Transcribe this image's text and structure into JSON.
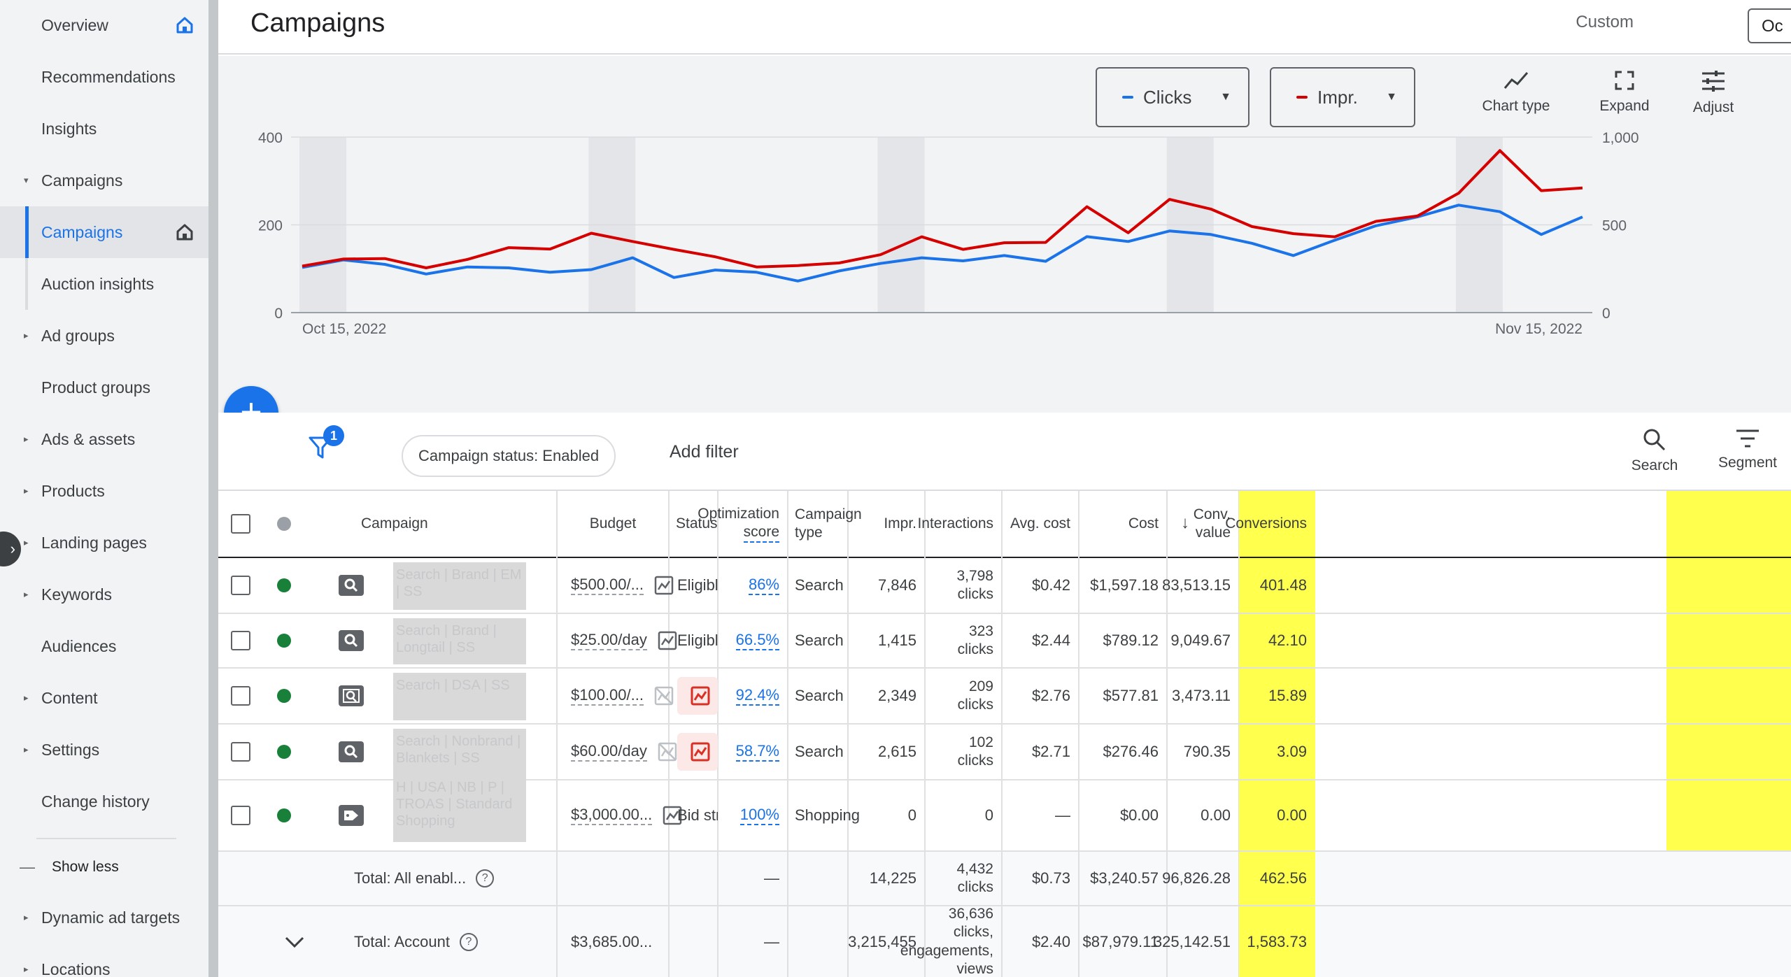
{
  "sidebar": {
    "items": [
      {
        "label": "Overview",
        "caret": false,
        "pin": "home"
      },
      {
        "label": "Recommendations",
        "caret": false
      },
      {
        "label": "Insights",
        "caret": false
      },
      {
        "label": "Campaigns",
        "caret": true,
        "expanded": true
      },
      {
        "label": "Campaigns",
        "caret": false,
        "active": true,
        "pin": "home-outline"
      },
      {
        "label": "Auction insights",
        "caret": false,
        "sub": true
      },
      {
        "label": "Ad groups",
        "caret": true
      },
      {
        "label": "Product groups",
        "caret": false
      },
      {
        "label": "Ads & assets",
        "caret": true
      },
      {
        "label": "Products",
        "caret": true
      },
      {
        "label": "Landing pages",
        "caret": true
      },
      {
        "label": "Keywords",
        "caret": true
      },
      {
        "label": "Audiences",
        "caret": false
      },
      {
        "label": "Content",
        "caret": true
      },
      {
        "label": "Settings",
        "caret": true
      },
      {
        "label": "Change history",
        "caret": false
      },
      {
        "label": "Show less",
        "caret": false,
        "dash": true
      },
      {
        "label": "Dynamic ad targets",
        "caret": true
      },
      {
        "label": "Locations",
        "caret": true
      }
    ]
  },
  "header": {
    "title": "Campaigns",
    "date_label": "Custom",
    "date_box": "Oc"
  },
  "chart_toolbar": {
    "metric1": "Clicks",
    "metric2": "Impr.",
    "chart_type": "Chart type",
    "expand": "Expand",
    "adjust": "Adjust"
  },
  "colors": {
    "clicks": "#1a73e8",
    "impr": "#d50000",
    "conversions_highlight": "#ffff4d"
  },
  "chart_data": {
    "type": "line",
    "x_start_label": "Oct 15, 2022",
    "x_end_label": "Nov 15, 2022",
    "left_axis": {
      "ticks": [
        "0",
        "200",
        "400"
      ],
      "ylim": [
        0,
        400
      ]
    },
    "right_axis": {
      "ticks": [
        "0",
        "500",
        "1,000"
      ],
      "ylim": [
        0,
        1000
      ]
    },
    "series": [
      {
        "name": "Clicks",
        "axis": "left",
        "values": [
          103,
          120,
          110,
          88,
          104,
          102,
          92,
          98,
          125,
          80,
          97,
          92,
          72,
          95,
          112,
          125,
          118,
          130,
          117,
          173,
          162,
          186,
          178,
          158,
          130,
          165,
          198,
          218,
          245,
          230,
          178,
          218
        ]
      },
      {
        "name": "Impr.",
        "axis": "right",
        "values": [
          265,
          305,
          308,
          255,
          303,
          370,
          362,
          452,
          405,
          360,
          318,
          260,
          268,
          283,
          330,
          432,
          360,
          398,
          400,
          603,
          455,
          645,
          590,
          490,
          450,
          432,
          520,
          550,
          680,
          923,
          695,
          710
        ]
      }
    ]
  },
  "filter_bar": {
    "badge": "1",
    "status_chip": "Campaign status: Enabled",
    "add_filter": "Add filter",
    "search": "Search",
    "segment": "Segment"
  },
  "table": {
    "headers": {
      "campaign": "Campaign",
      "budget": "Budget",
      "status": "Status",
      "opt1": "Optimization",
      "opt2": "score",
      "ctype1": "Campaign",
      "ctype2": "type",
      "impr": "Impr.",
      "interactions": "Interactions",
      "avg_cost": "Avg. cost",
      "cost": "Cost",
      "conv_value1": "Conv.",
      "conv_value2": "value",
      "conversions": "Conversions"
    },
    "rows": [
      {
        "name": "Search | Brand | EM | SS",
        "icon": "search",
        "budget": "$500.00/...",
        "budget_icon": "chart",
        "status": "Eligible",
        "opt": "86%",
        "ctype": "Search",
        "impr": "7,846",
        "inter1": "3,798",
        "inter2": "clicks",
        "avg_cost": "$0.42",
        "cost": "$1,597.18",
        "conv_value": "83,513.15",
        "conversions": "401.48"
      },
      {
        "name": "Search | Brand | Longtail | SS",
        "icon": "search",
        "budget": "$25.00/day",
        "budget_icon": "chart",
        "status": "Eligible",
        "opt": "66.5%",
        "ctype": "Search",
        "impr": "1,415",
        "inter1": "323",
        "inter2": "clicks",
        "avg_cost": "$2.44",
        "cost": "$789.12",
        "conv_value": "9,049.67",
        "conversions": "42.10"
      },
      {
        "name": "Search | DSA | SS",
        "icon": "dsa",
        "budget": "$100.00/...",
        "budget_icon": "chart-off",
        "status": "L",
        "status_limited": true,
        "opt": "92.4%",
        "ctype": "Search",
        "impr": "2,349",
        "inter1": "209",
        "inter2": "clicks",
        "avg_cost": "$2.76",
        "cost": "$577.81",
        "conv_value": "3,473.11",
        "conversions": "15.89"
      },
      {
        "name": "Search | Nonbrand | Blankets | SS",
        "icon": "search",
        "budget": "$60.00/day",
        "budget_icon": "chart-off",
        "status": "L",
        "status_limited": true,
        "opt": "58.7%",
        "ctype": "Search",
        "impr": "2,615",
        "inter1": "102",
        "inter2": "clicks",
        "avg_cost": "$2.71",
        "cost": "$276.46",
        "conv_value": "790.35",
        "conversions": "3.09"
      },
      {
        "name": "H | USA | NB | P | TROAS | Standard Shopping",
        "icon": "tag",
        "budget": "$3,000.00...",
        "budget_icon": "chart",
        "status": "Bid strat",
        "opt": "100%",
        "ctype": "Shopping",
        "impr": "0",
        "inter1": "0",
        "inter2": "",
        "avg_cost": "—",
        "cost": "$0.00",
        "conv_value": "0.00",
        "conversions": "0.00"
      }
    ],
    "total_enabled": {
      "label": "Total: All enabl...",
      "opt": "—",
      "impr": "14,225",
      "inter1": "4,432",
      "inter2": "clicks",
      "avg_cost": "$0.73",
      "cost": "$3,240.57",
      "conv_value": "96,826.28",
      "conversions": "462.56"
    },
    "total_account": {
      "label": "Total: Account",
      "budget": "$3,685.00...",
      "opt": "—",
      "impr": "3,215,455",
      "inter1": "36,636",
      "inter2": "clicks,",
      "inter3": "engagements,",
      "inter4": "views",
      "avg_cost": "$2.40",
      "cost": "$87,979.11",
      "conv_value": "325,142.51",
      "conversions": "1,583.73"
    }
  }
}
